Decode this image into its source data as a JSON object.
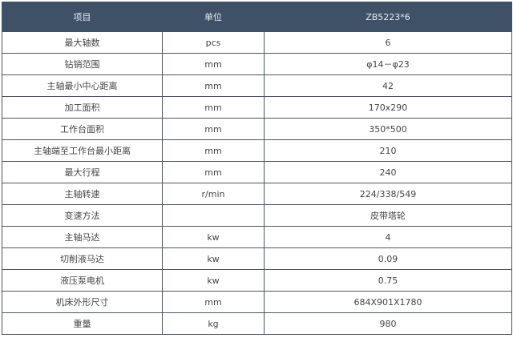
{
  "header": {
    "item": "项目",
    "unit": "单位",
    "model": "ZB5223*6"
  },
  "colors": {
    "header_bg": "#3f5167",
    "border": "#4b5563"
  },
  "rows": [
    {
      "item": "最大轴数",
      "unit": "pcs",
      "value": "6"
    },
    {
      "item": "钻销范围",
      "unit": "mm",
      "value": "φ14－φ23"
    },
    {
      "item": "主轴最小中心距离",
      "unit": "mm",
      "value": "42"
    },
    {
      "item": "加工面积",
      "unit": "mm",
      "value": "170x290"
    },
    {
      "item": "工作台面积",
      "unit": "mm",
      "value": "350*500"
    },
    {
      "item": "主轴端至工作台最小距离",
      "unit": "mm",
      "value": "210"
    },
    {
      "item": "最大行程",
      "unit": "mm",
      "value": "240"
    },
    {
      "item": "主轴转速",
      "unit": "r/min",
      "value": "224/338/549"
    },
    {
      "item": "变速方法",
      "unit": "",
      "value": "皮带塔轮"
    },
    {
      "item": "主轴马达",
      "unit": "kw",
      "value": "4"
    },
    {
      "item": "切削液马达",
      "unit": "kw",
      "value": "0.09"
    },
    {
      "item": "液压泵电机",
      "unit": "kw",
      "value": "0.75"
    },
    {
      "item": "机床外形尺寸",
      "unit": "mm",
      "value": "684X901X1780"
    },
    {
      "item": "重量",
      "unit": "kg",
      "value": "980"
    }
  ]
}
